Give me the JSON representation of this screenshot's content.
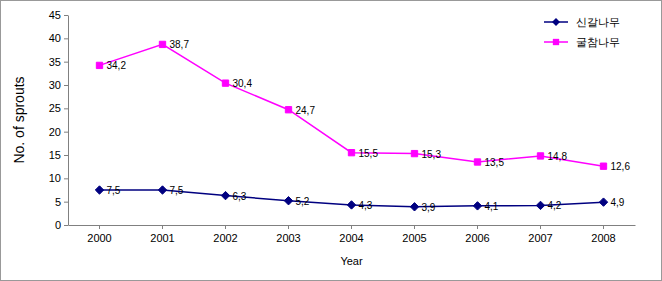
{
  "chart_data": {
    "type": "line",
    "x_label": "Year",
    "y_label": "No. of sprouts",
    "categories": [
      "2000",
      "2001",
      "2002",
      "2003",
      "2004",
      "2005",
      "2006",
      "2007",
      "2008"
    ],
    "series": [
      {
        "name": "신갈나무",
        "color": "#000080",
        "marker": "diamond",
        "line_style": "solid",
        "values": [
          7.5,
          7.5,
          6.3,
          5.2,
          4.3,
          3.9,
          4.1,
          4.2,
          4.9
        ],
        "value_labels": [
          "7,5",
          "7,5",
          "6,3",
          "5,2",
          "4,3",
          "3,9",
          "4,1",
          "4,2",
          "4,9"
        ]
      },
      {
        "name": "굴참나무",
        "color": "#ff00ff",
        "marker": "square",
        "line_style": "solid",
        "values": [
          34.2,
          38.7,
          30.4,
          24.7,
          15.5,
          15.3,
          13.5,
          14.8,
          12.6
        ],
        "value_labels": [
          "34,2",
          "38,7",
          "30,4",
          "24,7",
          "15,5",
          "15,3",
          "13,5",
          "14,8",
          "12,6"
        ]
      }
    ],
    "ylim": [
      0,
      45
    ],
    "yticks": [
      0,
      5,
      10,
      15,
      20,
      25,
      30,
      35,
      40,
      45
    ],
    "grid": false,
    "legend": "upper right",
    "data_labels": true
  }
}
